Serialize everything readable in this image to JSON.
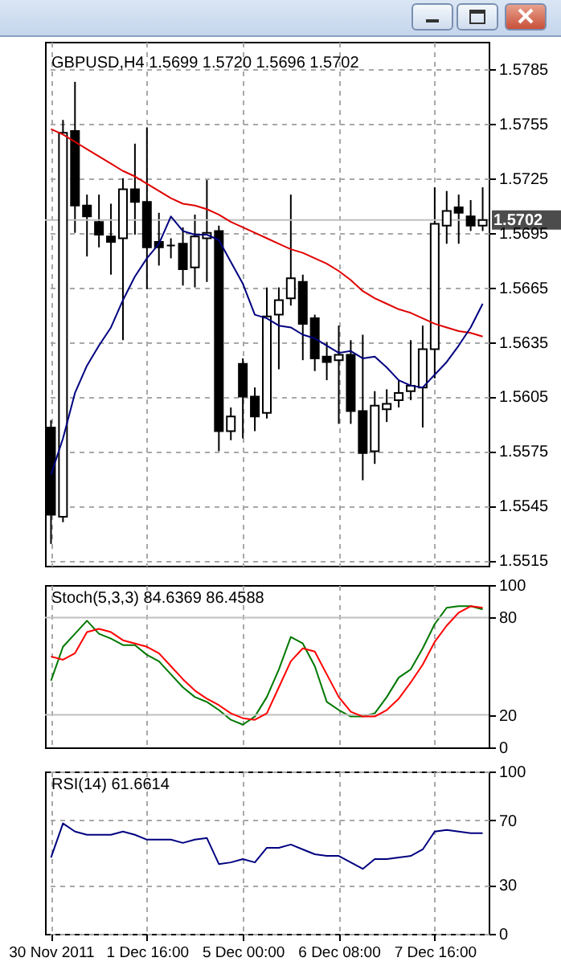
{
  "chart_data": [
    {
      "type": "candlestick",
      "title": "GBPUSD,H4  1.5699 1.5720 1.5696 1.5702",
      "tick_labels": "y",
      "grid": true,
      "categories": [
        null,
        null,
        null,
        null,
        null,
        null,
        null,
        null,
        null,
        null,
        null,
        null,
        null,
        null,
        null,
        null,
        null,
        null,
        null,
        null,
        null,
        null,
        null,
        null,
        null,
        null,
        null,
        null,
        null,
        null,
        null,
        null,
        null,
        null,
        null,
        null,
        null
      ],
      "ohlc": [
        [
          1.5588,
          1.5592,
          1.5524,
          1.554
        ],
        [
          1.5539,
          1.5757,
          1.5536,
          1.575
        ],
        [
          1.5751,
          1.5778,
          1.5695,
          1.571
        ],
        [
          1.571,
          1.5716,
          1.5682,
          1.5704
        ],
        [
          1.5701,
          1.5716,
          1.5687,
          1.5694
        ],
        [
          1.5693,
          1.5711,
          1.5672,
          1.569
        ],
        [
          1.5692,
          1.5725,
          1.5636,
          1.5719
        ],
        [
          1.5719,
          1.5744,
          1.5694,
          1.5712
        ],
        [
          1.5712,
          1.5753,
          1.5664,
          1.5687
        ],
        [
          1.569,
          1.5706,
          1.5677,
          1.5687
        ],
        [
          1.5688,
          1.5692,
          1.5681,
          1.5688
        ],
        [
          1.5689,
          1.5698,
          1.5666,
          1.5675
        ],
        [
          1.5676,
          1.5705,
          1.5665,
          1.5693
        ],
        [
          1.5692,
          1.5724,
          1.5668,
          1.5695
        ],
        [
          1.5696,
          1.5699,
          1.5575,
          1.5586
        ],
        [
          1.5586,
          1.5599,
          1.5581,
          1.5594
        ],
        [
          1.5623,
          1.5626,
          1.5582,
          1.5605
        ],
        [
          1.5605,
          1.561,
          1.5586,
          1.5594
        ],
        [
          1.5596,
          1.5665,
          1.5593,
          1.5649
        ],
        [
          1.565,
          1.5665,
          1.562,
          1.5658
        ],
        [
          1.5659,
          1.5716,
          1.5655,
          1.567
        ],
        [
          1.5668,
          1.5672,
          1.5625,
          1.5645
        ],
        [
          1.5648,
          1.565,
          1.5619,
          1.5626
        ],
        [
          1.5627,
          1.5635,
          1.5614,
          1.5624
        ],
        [
          1.5625,
          1.5644,
          1.559,
          1.5628
        ],
        [
          1.5628,
          1.5636,
          1.559,
          1.5597
        ],
        [
          1.5597,
          1.5639,
          1.5559,
          1.5574
        ],
        [
          1.5575,
          1.5608,
          1.5568,
          1.56
        ],
        [
          1.5598,
          1.5609,
          1.5591,
          1.5601
        ],
        [
          1.5603,
          1.5614,
          1.5599,
          1.5607
        ],
        [
          1.5608,
          1.5636,
          1.5603,
          1.5611
        ],
        [
          1.561,
          1.5644,
          1.5588,
          1.5631
        ],
        [
          1.5631,
          1.572,
          1.5615,
          1.57
        ],
        [
          1.5699,
          1.5718,
          1.5689,
          1.5707
        ],
        [
          1.5709,
          1.5716,
          1.5689,
          1.5706
        ],
        [
          1.5704,
          1.5713,
          1.5696,
          1.5699
        ],
        [
          1.5699,
          1.572,
          1.5696,
          1.5702
        ]
      ],
      "series": [
        {
          "type": "line",
          "color": "#e00000",
          "values": [
            1.5752,
            1.5749,
            1.5745,
            1.5741,
            1.5737,
            1.5733,
            1.5729,
            1.5726,
            1.5722,
            1.5718,
            1.5714,
            1.5711,
            1.571,
            1.5708,
            1.5705,
            1.5701,
            1.5698,
            1.5695,
            1.5692,
            1.5689,
            1.5686,
            1.5684,
            1.5681,
            1.5678,
            1.5674,
            1.5669,
            1.5663,
            1.5659,
            1.5656,
            1.5653,
            1.5651,
            1.5648,
            1.5645,
            1.5643,
            1.5641,
            1.564,
            1.5638
          ]
        },
        {
          "type": "line",
          "color": "#000080",
          "values": [
            1.5562,
            1.5582,
            1.5607,
            1.5622,
            1.5633,
            1.5643,
            1.5658,
            1.5671,
            1.5681,
            1.5689,
            1.5704,
            1.5696,
            1.5694,
            1.5694,
            1.5691,
            1.5679,
            1.5667,
            1.565,
            1.5648,
            1.5644,
            1.5643,
            1.5639,
            1.5637,
            1.5633,
            1.5629,
            1.563,
            1.5626,
            1.5627,
            1.5621,
            1.5614,
            1.5611,
            1.561,
            1.5617,
            1.5624,
            1.5633,
            1.5643,
            1.5656
          ]
        }
      ],
      "ylim": [
        1.5512,
        1.58
      ],
      "yticks": [
        1.5515,
        1.5545,
        1.5575,
        1.5605,
        1.5635,
        1.5665,
        1.5695,
        1.5725,
        1.5755,
        1.5785
      ],
      "ref_lines": [
        {
          "axis": "y",
          "value": 1.5702,
          "label": "1.5702",
          "color": "#c0c0c0"
        }
      ]
    },
    {
      "type": "line",
      "title": "Stoch(5,3,3) 84.6369 86.4588",
      "tick_labels": "y",
      "grid": "x",
      "categories": [
        null,
        null,
        null,
        null,
        null,
        null,
        null,
        null,
        null,
        null,
        null,
        null,
        null,
        null,
        null,
        null,
        null,
        null,
        null,
        null,
        null,
        null,
        null,
        null,
        null,
        null,
        null,
        null,
        null,
        null,
        null,
        null,
        null,
        null,
        null,
        null,
        null
      ],
      "series": [
        {
          "color": "#007800",
          "values": [
            41,
            62,
            70,
            78,
            70,
            67,
            63,
            63,
            57,
            53,
            45,
            37,
            31,
            28,
            23,
            17,
            14,
            19,
            31,
            48,
            68,
            64,
            50,
            28,
            23,
            19,
            19,
            21,
            31,
            43,
            48,
            61,
            76,
            86,
            87,
            87,
            85
          ]
        },
        {
          "color": "#ff0000",
          "values": [
            56,
            54,
            58,
            71,
            73,
            71,
            66,
            64,
            62,
            58,
            50,
            42,
            35,
            30,
            26,
            21,
            18,
            17,
            21,
            37,
            53,
            61,
            59,
            45,
            31,
            22,
            19,
            19,
            23,
            30,
            40,
            51,
            65,
            75,
            83,
            87,
            86
          ]
        }
      ],
      "ylim": [
        0,
        100
      ],
      "yticks": [
        0,
        20,
        80,
        100
      ],
      "ref_lines": [
        {
          "axis": "y",
          "value": 20,
          "color": "#c0c0c0"
        },
        {
          "axis": "y",
          "value": 80,
          "color": "#c0c0c0"
        }
      ]
    },
    {
      "type": "line",
      "title": "RSI(14) 61.6614",
      "grid": true,
      "categories": [
        "30 Nov 2011",
        null,
        null,
        null,
        null,
        null,
        null,
        null,
        "1 Dec 16:00",
        null,
        null,
        null,
        null,
        null,
        null,
        null,
        "5 Dec 00:00",
        null,
        null,
        null,
        null,
        null,
        null,
        null,
        "6 Dec 08:00",
        null,
        null,
        null,
        null,
        null,
        null,
        null,
        "7 Dec 16:00",
        null,
        null,
        null,
        null
      ],
      "series": [
        {
          "color": "#000080",
          "values": [
            47,
            68,
            63,
            61,
            61,
            61,
            63,
            61,
            58,
            58,
            58,
            56,
            58,
            59,
            43,
            44,
            46,
            44,
            53,
            53,
            55,
            52,
            49,
            48,
            48,
            44,
            40,
            46,
            46,
            47,
            48,
            52,
            63,
            64,
            63,
            62,
            62
          ]
        }
      ],
      "ylim": [
        0,
        100
      ],
      "yticks": [
        0,
        30,
        70,
        100
      ]
    }
  ]
}
